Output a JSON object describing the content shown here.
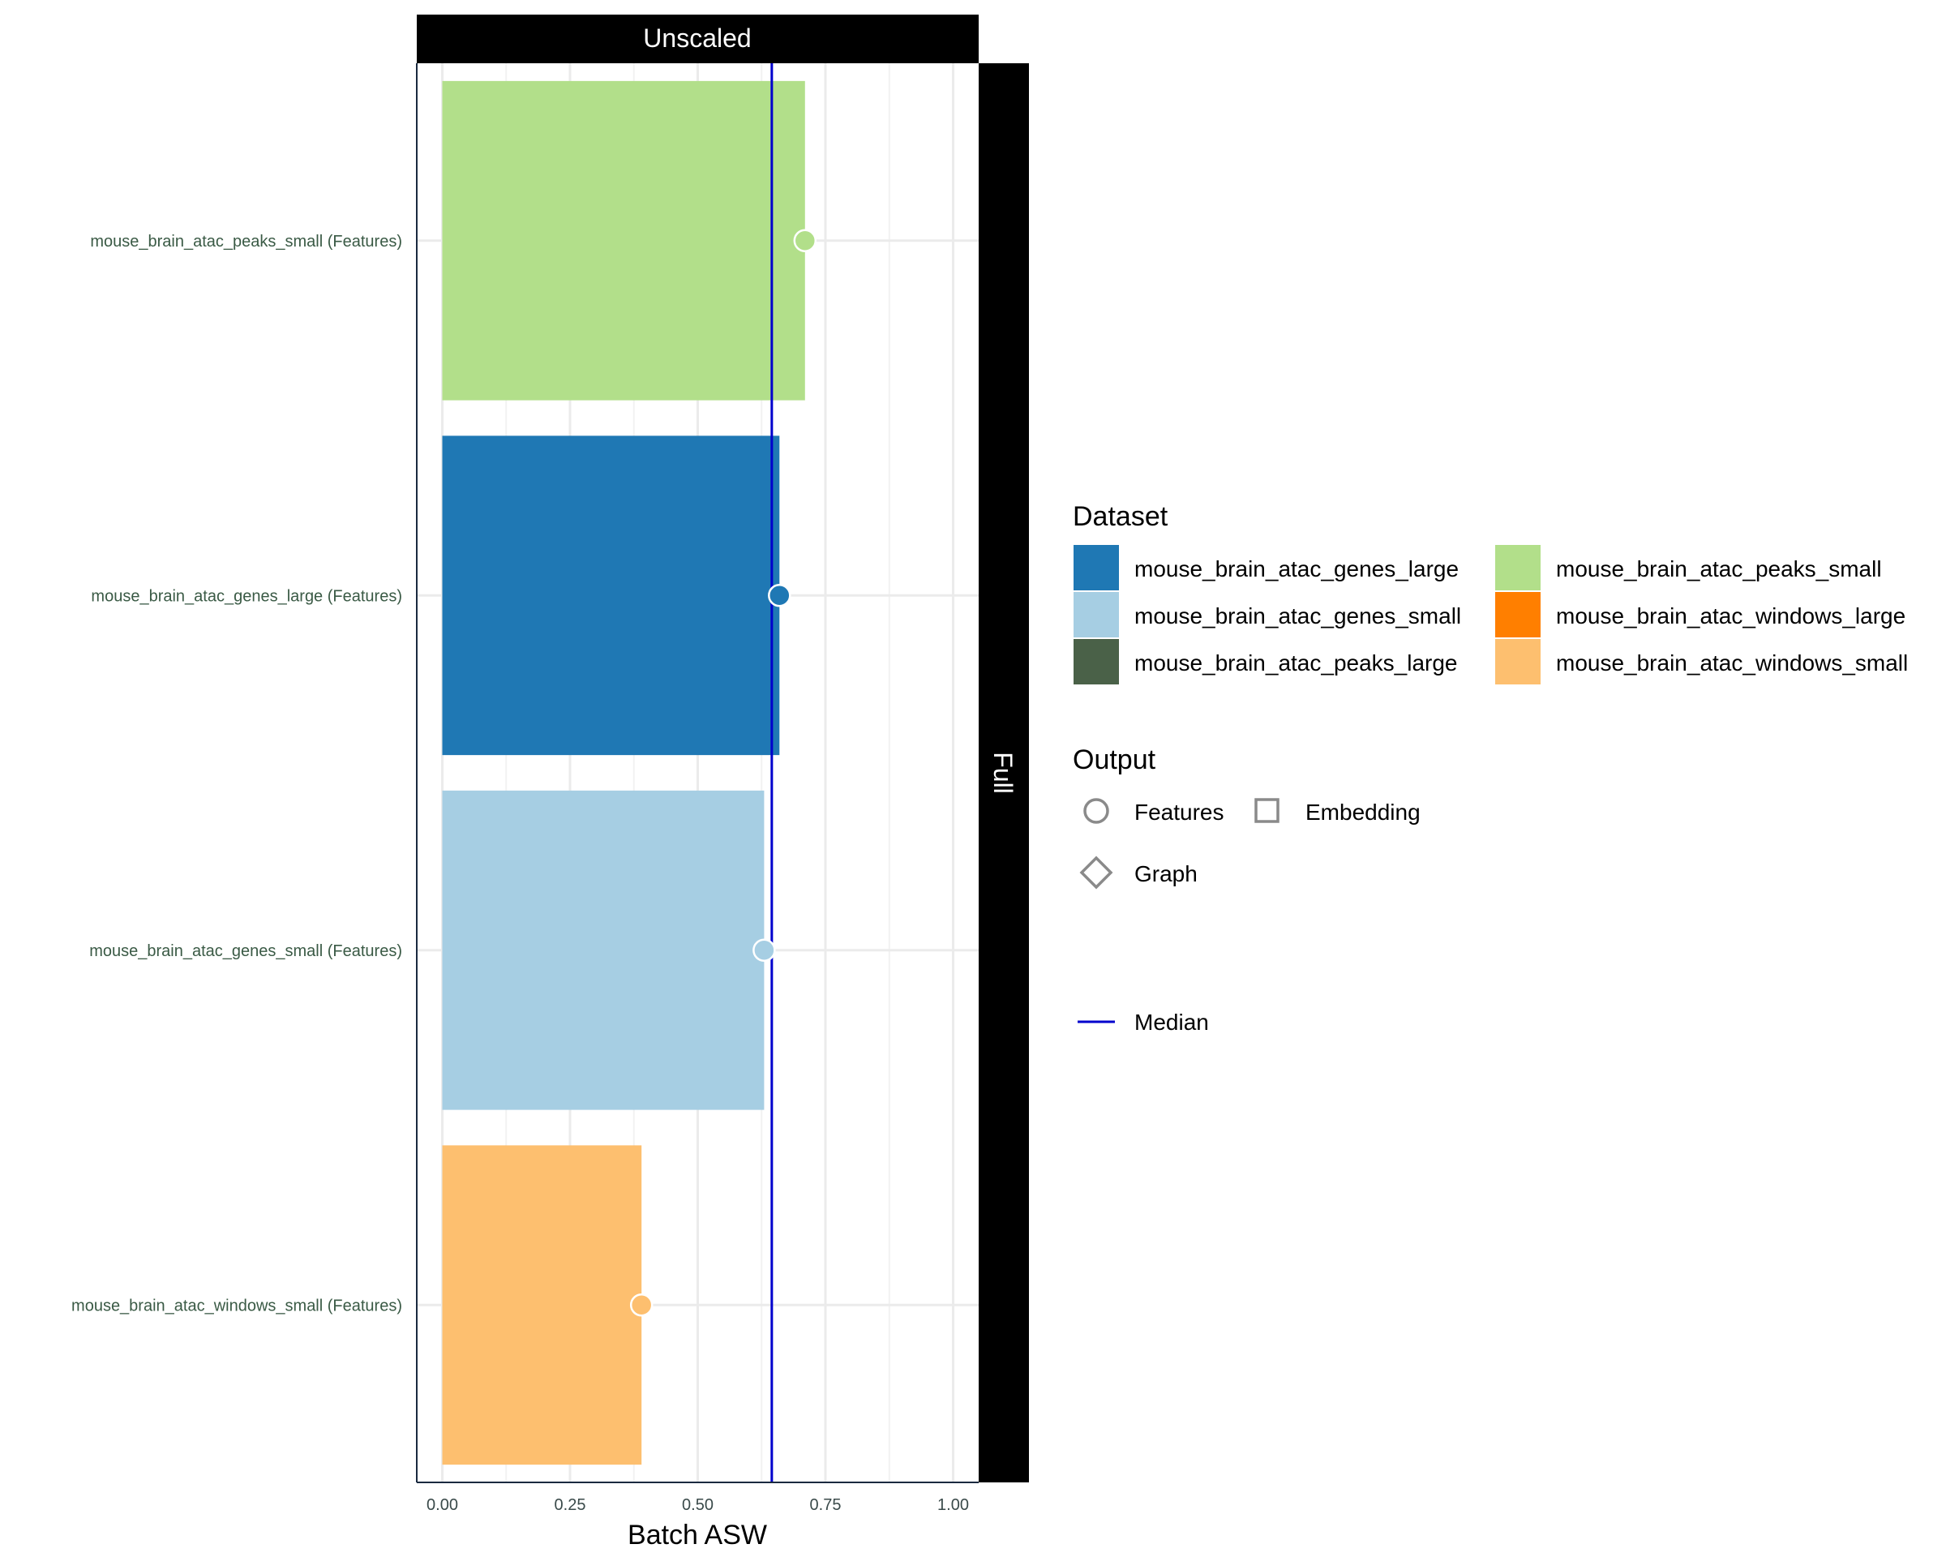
{
  "chart_data": {
    "type": "bar",
    "facet_column": "Unscaled",
    "facet_row": "Full",
    "xlabel": "Batch ASW",
    "xlim": [
      -0.05,
      1.05
    ],
    "xticks": [
      0,
      0.25,
      0.5,
      0.75,
      1.0
    ],
    "xtick_labels": [
      "0.00",
      "0.25",
      "0.50",
      "0.75",
      "1.00"
    ],
    "grid": true,
    "median": 0.645,
    "categories": [
      "mouse_brain_atac_peaks_small (Features)",
      "mouse_brain_atac_genes_large (Features)",
      "mouse_brain_atac_genes_small (Features)",
      "mouse_brain_atac_windows_small (Features)"
    ],
    "values": [
      0.71,
      0.66,
      0.63,
      0.39
    ],
    "bar_colors": [
      "#b2df8a",
      "#1f78b4",
      "#a6cee3",
      "#fdbf6f"
    ],
    "legend_placement": "right",
    "legend": {
      "dataset_title": "Dataset",
      "datasets": [
        {
          "label": "mouse_brain_atac_genes_large",
          "color": "#1f78b4"
        },
        {
          "label": "mouse_brain_atac_genes_small",
          "color": "#a6cee3"
        },
        {
          "label": "mouse_brain_atac_peaks_large",
          "color": "#4a6148"
        },
        {
          "label": "mouse_brain_atac_peaks_small",
          "color": "#b2df8a"
        },
        {
          "label": "mouse_brain_atac_windows_large",
          "color": "#ff7f00"
        },
        {
          "label": "mouse_brain_atac_windows_small",
          "color": "#fdbf6f"
        }
      ],
      "output_title": "Output",
      "outputs": [
        {
          "label": "Features",
          "shape": "circle"
        },
        {
          "label": "Embedding",
          "shape": "square"
        },
        {
          "label": "Graph",
          "shape": "diamond"
        }
      ],
      "median_label": "Median",
      "median_color": "#0000cd"
    }
  }
}
